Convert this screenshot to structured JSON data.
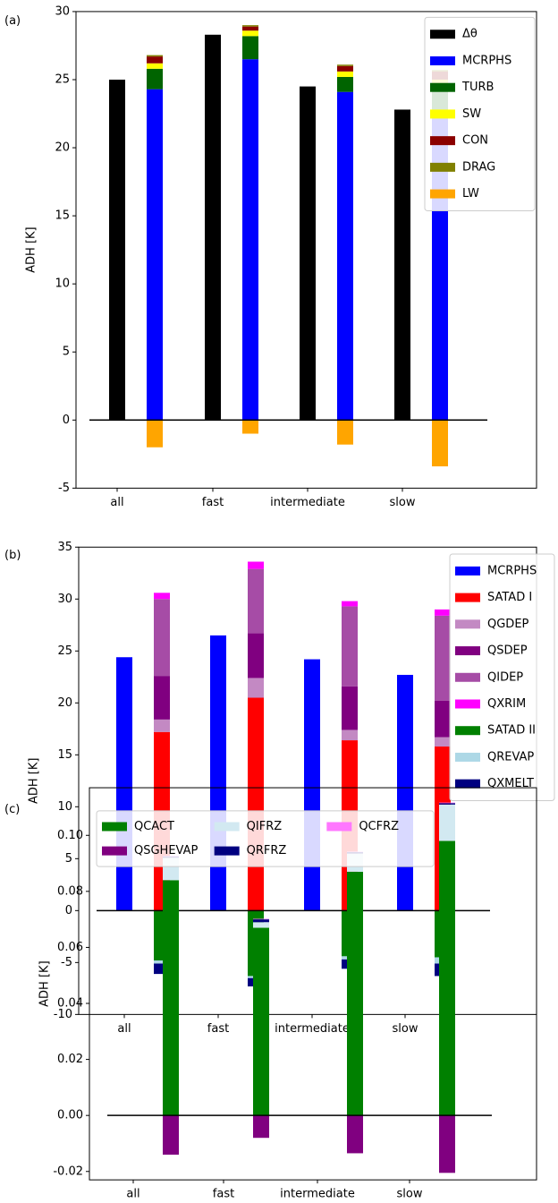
{
  "chart_data": [
    {
      "type": "bar",
      "panel_label": "(a)",
      "y_label": "ADH [K]",
      "categories": [
        "all",
        "fast",
        "intermediate",
        "slow"
      ],
      "ylim": [
        -5,
        30
      ],
      "yticks": [
        -5,
        0,
        5,
        10,
        15,
        20,
        25,
        30
      ],
      "legend": "upper right",
      "legend_columns": 1,
      "series": [
        {
          "name": "Δθ",
          "color": "#000000",
          "group": 0,
          "values": [
            25.0,
            28.3,
            24.5,
            22.8
          ]
        },
        {
          "name": "MCRPHS",
          "color": "#0000ff",
          "group": 1,
          "values": [
            24.3,
            26.5,
            24.1,
            22.7
          ]
        },
        {
          "name": "TURB",
          "color": "#006400",
          "group": 1,
          "values": [
            1.5,
            1.7,
            1.1,
            1.6
          ]
        },
        {
          "name": "SW",
          "color": "#ffff00",
          "group": 1,
          "values": [
            0.4,
            0.4,
            0.4,
            0.7
          ]
        },
        {
          "name": "CON",
          "color": "#8b0000",
          "group": 1,
          "values": [
            0.5,
            0.3,
            0.4,
            0.6
          ]
        },
        {
          "name": "DRAG",
          "color": "#808000",
          "group": 1,
          "values": [
            0.1,
            0.1,
            0.1,
            0.1
          ]
        },
        {
          "name": "LW",
          "color": "#ffa500",
          "group": 1,
          "values": [
            -2.0,
            -1.0,
            -1.8,
            -3.4
          ]
        }
      ]
    },
    {
      "type": "bar",
      "panel_label": "(b)",
      "y_label": "ADH [K]",
      "categories": [
        "all",
        "fast",
        "intermediate",
        "slow"
      ],
      "ylim": [
        -10,
        35
      ],
      "yticks": [
        -10,
        -5,
        0,
        5,
        10,
        15,
        20,
        25,
        30,
        35
      ],
      "legend": "upper right",
      "legend_columns": 1,
      "series": [
        {
          "name": "MCRPHS",
          "color": "#0000ff",
          "group": 0,
          "values": [
            24.4,
            26.5,
            24.2,
            22.7
          ]
        },
        {
          "name": "SATAD I",
          "color": "#ff0000",
          "group": 1,
          "values": [
            17.2,
            20.5,
            16.4,
            15.8
          ]
        },
        {
          "name": "QGDEP",
          "color": "#c389c3",
          "group": 1,
          "values": [
            1.2,
            1.9,
            1.0,
            0.9
          ]
        },
        {
          "name": "QSDEP",
          "color": "#800080",
          "group": 1,
          "values": [
            4.2,
            4.3,
            4.2,
            3.5
          ]
        },
        {
          "name": "QIDEP",
          "color": "#a64ca6",
          "group": 1,
          "values": [
            7.4,
            6.2,
            7.7,
            8.2
          ]
        },
        {
          "name": "QXRIM",
          "color": "#ff00ff",
          "group": 1,
          "values": [
            0.6,
            0.7,
            0.5,
            0.6
          ]
        },
        {
          "name": "SATAD II",
          "color": "#008000",
          "group": 1,
          "values": [
            -4.8,
            -6.3,
            -4.4,
            -4.5
          ]
        },
        {
          "name": "QREVAP",
          "color": "#add8e6",
          "group": 1,
          "values": [
            -0.3,
            -0.2,
            -0.3,
            -0.6
          ]
        },
        {
          "name": "QXMELT",
          "color": "#000080",
          "group": 1,
          "values": [
            -1.0,
            -0.8,
            -0.9,
            -1.2
          ]
        }
      ]
    },
    {
      "type": "bar",
      "panel_label": "(c)",
      "y_label": "ADH [K]",
      "categories": [
        "all",
        "fast",
        "intermediate",
        "slow"
      ],
      "ylim": [
        -0.023,
        0.117
      ],
      "yticks": [
        -0.02,
        {
          "value": 0,
          "label": "0.00"
        },
        0.02,
        0.04,
        0.06,
        0.08,
        {
          "value": 0.1,
          "label": "0.10"
        }
      ],
      "legend": "upper left",
      "legend_columns": 3,
      "series": [
        {
          "name": "QCACT",
          "color": "#008000",
          "group": 1,
          "values": [
            0.084,
            0.067,
            0.087,
            0.098
          ]
        },
        {
          "name": "QSGHEVAP",
          "color": "#800080",
          "group": 1,
          "values": [
            -0.014,
            -0.008,
            -0.0135,
            -0.0205
          ]
        },
        {
          "name": "QIFRZ",
          "color": "#d2e9f1",
          "group": 1,
          "values": [
            0.008,
            0.002,
            0.0065,
            0.013
          ]
        },
        {
          "name": "QRFRZ",
          "color": "#000080",
          "group": 1,
          "values": [
            0.0005,
            0.001,
            0.0005,
            0.0005
          ]
        },
        {
          "name": "QCFRZ",
          "color": "#ff77ff",
          "group": 1,
          "values": [
            0.0002,
            0.0002,
            0.0002,
            0.0002
          ]
        }
      ]
    }
  ]
}
